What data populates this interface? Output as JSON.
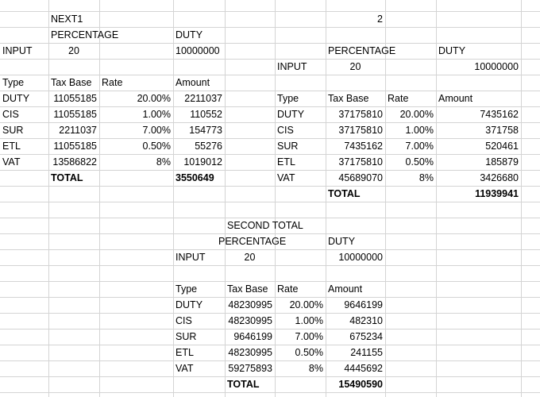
{
  "sheet": {
    "block1": {
      "next1": "NEXT1",
      "percentage_label": "PERCENTAGE",
      "duty_label": "DUTY",
      "input_label": "INPUT",
      "input_value": "20",
      "duty_value": "10000000",
      "headers": {
        "type": "Type",
        "tax_base": "Tax Base",
        "rate": "Rate",
        "amount": "Amount"
      },
      "rows": [
        {
          "type": "DUTY",
          "tax_base": "11055185",
          "rate": "20.00%",
          "amount": "2211037"
        },
        {
          "type": "CIS",
          "tax_base": "11055185",
          "rate": "1.00%",
          "amount": "110552"
        },
        {
          "type": "SUR",
          "tax_base": "2211037",
          "rate": "7.00%",
          "amount": "154773"
        },
        {
          "type": "ETL",
          "tax_base": "11055185",
          "rate": "0.50%",
          "amount": "55276"
        },
        {
          "type": "VAT",
          "tax_base": "13586822",
          "rate": "8%",
          "amount": "1019012"
        }
      ],
      "total_label": "TOTAL",
      "total_value": "3550649"
    },
    "block2": {
      "marker": "2",
      "percentage_label": "PERCENTAGE",
      "duty_label": "DUTY",
      "input_label": "INPUT",
      "input_value": "20",
      "duty_value": "10000000",
      "headers": {
        "type": "Type",
        "tax_base": "Tax Base",
        "rate": "Rate",
        "amount": "Amount"
      },
      "rows": [
        {
          "type": "DUTY",
          "tax_base": "37175810",
          "rate": "20.00%",
          "amount": "7435162"
        },
        {
          "type": "CIS",
          "tax_base": "37175810",
          "rate": "1.00%",
          "amount": "371758"
        },
        {
          "type": "SUR",
          "tax_base": "7435162",
          "rate": "7.00%",
          "amount": "520461"
        },
        {
          "type": "ETL",
          "tax_base": "37175810",
          "rate": "0.50%",
          "amount": "185879"
        },
        {
          "type": "VAT",
          "tax_base": "45689070",
          "rate": "8%",
          "amount": "3426680"
        }
      ],
      "total_label": "TOTAL",
      "total_value": "11939941"
    },
    "block3": {
      "title": "SECOND TOTAL",
      "percentage_label": "PERCENTAGE",
      "duty_label": "DUTY",
      "input_label": "INPUT",
      "input_value": "20",
      "duty_value": "10000000",
      "headers": {
        "type": "Type",
        "tax_base": "Tax Base",
        "rate": "Rate",
        "amount": "Amount"
      },
      "rows": [
        {
          "type": "DUTY",
          "tax_base": "48230995",
          "rate": "20.00%",
          "amount": "9646199"
        },
        {
          "type": "CIS",
          "tax_base": "48230995",
          "rate": "1.00%",
          "amount": "482310"
        },
        {
          "type": "SUR",
          "tax_base": "9646199",
          "rate": "7.00%",
          "amount": "675234"
        },
        {
          "type": "ETL",
          "tax_base": "48230995",
          "rate": "0.50%",
          "amount": "241155"
        },
        {
          "type": "VAT",
          "tax_base": "59275893",
          "rate": "8%",
          "amount": "4445692"
        }
      ],
      "total_label": "TOTAL",
      "total_value": "15490590"
    }
  }
}
